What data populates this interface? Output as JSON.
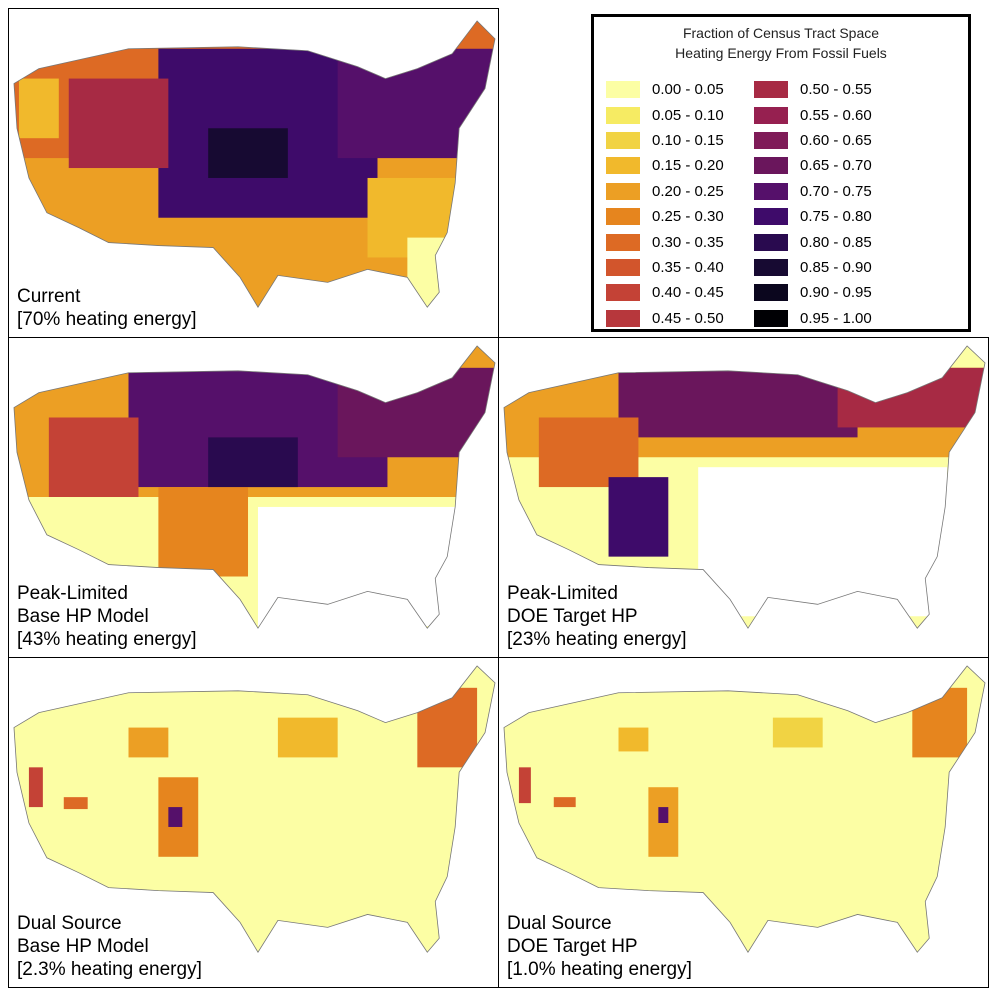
{
  "legend": {
    "title_line1": "Fraction of Census Tract Space",
    "title_line2": "Heating Energy From Fossil Fuels",
    "column1": [
      {
        "label": "0.00 - 0.05",
        "color": "#fcfea4"
      },
      {
        "label": "0.05 - 0.10",
        "color": "#f6eb63"
      },
      {
        "label": "0.10 - 0.15",
        "color": "#f1d343"
      },
      {
        "label": "0.15 - 0.20",
        "color": "#f1b92c"
      },
      {
        "label": "0.20 - 0.25",
        "color": "#ec9f24"
      },
      {
        "label": "0.25 - 0.30",
        "color": "#e6851e"
      },
      {
        "label": "0.30 - 0.35",
        "color": "#dd6a24"
      },
      {
        "label": "0.35 - 0.40",
        "color": "#d2552c"
      },
      {
        "label": "0.40 - 0.45",
        "color": "#c44236"
      },
      {
        "label": "0.45 - 0.50",
        "color": "#b7373c"
      }
    ],
    "column2": [
      {
        "label": "0.50 - 0.55",
        "color": "#a72a44"
      },
      {
        "label": "0.55 - 0.60",
        "color": "#962050"
      },
      {
        "label": "0.60 - 0.65",
        "color": "#7f1b58"
      },
      {
        "label": "0.65 - 0.70",
        "color": "#6a165c"
      },
      {
        "label": "0.70 - 0.75",
        "color": "#55106a"
      },
      {
        "label": "0.75 - 0.80",
        "color": "#3e0b6a"
      },
      {
        "label": "0.80 - 0.85",
        "color": "#290a4f"
      },
      {
        "label": "0.85 - 0.90",
        "color": "#170a32"
      },
      {
        "label": "0.90 - 0.95",
        "color": "#0b061e"
      },
      {
        "label": "0.95 - 1.00",
        "color": "#000004"
      }
    ]
  },
  "panels": {
    "current": {
      "line1": "Current",
      "line2": "[70% heating energy]"
    },
    "pl_base": {
      "line1": "Peak-Limited",
      "line2": "Base HP Model",
      "line3": "[43% heating energy]"
    },
    "pl_doe": {
      "line1": "Peak-Limited",
      "line2": "DOE Target HP",
      "line3": "[23% heating energy]"
    },
    "ds_base": {
      "line1": "Dual Source",
      "line2": "Base HP Model",
      "line3": "[2.3% heating energy]"
    },
    "ds_doe": {
      "line1": "Dual Source",
      "line2": "DOE Target HP",
      "line3": "[1.0% heating energy]"
    }
  }
}
